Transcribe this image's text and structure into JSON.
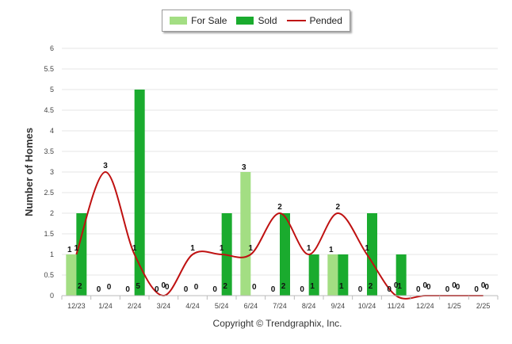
{
  "chart_data": {
    "type": "bar",
    "ylabel": "Number of Homes",
    "xlabel": "",
    "ylim": [
      0,
      6
    ],
    "yticks": [
      "0",
      "0.5",
      "1",
      "1.5",
      "2",
      "2.5",
      "3",
      "3.5",
      "4",
      "4.5",
      "5",
      "5.5",
      "6"
    ],
    "categories": [
      "12/23",
      "1/24",
      "2/24",
      "3/24",
      "4/24",
      "5/24",
      "6/24",
      "7/24",
      "8/24",
      "9/24",
      "10/24",
      "11/24",
      "12/24",
      "1/25",
      "2/25"
    ],
    "series": [
      {
        "name": "For Sale",
        "type": "bar",
        "color": "#a3de83",
        "values": [
          1,
          0,
          0,
          0,
          0,
          0,
          3,
          0,
          0,
          1,
          0,
          0,
          0,
          0,
          0
        ]
      },
      {
        "name": "Sold",
        "type": "bar",
        "color": "#1aab2e",
        "values": [
          2,
          0,
          5,
          0,
          0,
          2,
          0,
          2,
          1,
          1,
          2,
          1,
          0,
          0,
          0
        ]
      },
      {
        "name": "Pended",
        "type": "line",
        "color": "#bf1111",
        "values": [
          1,
          3,
          1,
          0,
          1,
          1,
          1,
          2,
          1,
          2,
          1,
          0,
          0,
          0,
          0
        ]
      }
    ],
    "grid": true,
    "legend_position": "top-center"
  },
  "copyright": "Copyright © Trendgraphix, Inc."
}
